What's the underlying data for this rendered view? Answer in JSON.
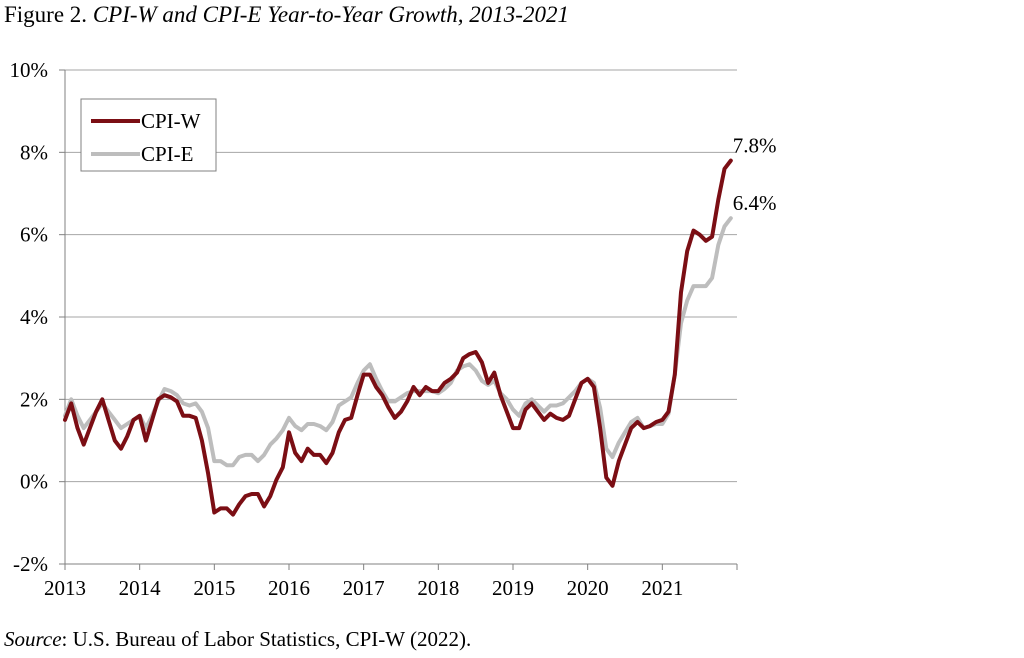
{
  "figure": {
    "label": "Figure 2.",
    "title": "CPI-W and CPI-E Year-to-Year Growth, 2013-2021"
  },
  "source": {
    "label": "Source",
    "text": ": U.S. Bureau of Labor Statistics, CPI-W (2022)."
  },
  "colors": {
    "cpi_w": "#7B0E14",
    "cpi_e": "#BDBDBD",
    "grid": "#A6A6A6",
    "axis": "#808080"
  },
  "chart_data": {
    "type": "line",
    "title": "CPI-W and CPI-E Year-to-Year Growth, 2013-2021",
    "xlabel": "",
    "ylabel": "",
    "ylim": [
      -2,
      10
    ],
    "xlim": [
      2013,
      2022
    ],
    "grid": true,
    "legend_position": "top-left",
    "y_ticks": [
      "-2%",
      "0%",
      "2%",
      "4%",
      "6%",
      "8%",
      "10%"
    ],
    "x_ticks": [
      "2013",
      "2014",
      "2015",
      "2016",
      "2017",
      "2018",
      "2019",
      "2020",
      "2021"
    ],
    "annotations": [
      {
        "series": "CPI-W",
        "text": "7.8%"
      },
      {
        "series": "CPI-E",
        "text": "6.4%"
      }
    ],
    "series": [
      {
        "name": "CPI-W",
        "color": "#7B0E14",
        "x": [
          2013.0,
          2013.083,
          2013.167,
          2013.25,
          2013.333,
          2013.417,
          2013.5,
          2013.583,
          2013.667,
          2013.75,
          2013.833,
          2013.917,
          2014.0,
          2014.083,
          2014.167,
          2014.25,
          2014.333,
          2014.417,
          2014.5,
          2014.583,
          2014.667,
          2014.75,
          2014.833,
          2014.917,
          2015.0,
          2015.083,
          2015.167,
          2015.25,
          2015.333,
          2015.417,
          2015.5,
          2015.583,
          2015.667,
          2015.75,
          2015.833,
          2015.917,
          2016.0,
          2016.083,
          2016.167,
          2016.25,
          2016.333,
          2016.417,
          2016.5,
          2016.583,
          2016.667,
          2016.75,
          2016.833,
          2016.917,
          2017.0,
          2017.083,
          2017.167,
          2017.25,
          2017.333,
          2017.417,
          2017.5,
          2017.583,
          2017.667,
          2017.75,
          2017.833,
          2017.917,
          2018.0,
          2018.083,
          2018.167,
          2018.25,
          2018.333,
          2018.417,
          2018.5,
          2018.583,
          2018.667,
          2018.75,
          2018.833,
          2018.917,
          2019.0,
          2019.083,
          2019.167,
          2019.25,
          2019.333,
          2019.417,
          2019.5,
          2019.583,
          2019.667,
          2019.75,
          2019.833,
          2019.917,
          2020.0,
          2020.083,
          2020.167,
          2020.25,
          2020.333,
          2020.417,
          2020.5,
          2020.583,
          2020.667,
          2020.75,
          2020.833,
          2020.917,
          2021.0,
          2021.083,
          2021.167,
          2021.25,
          2021.333,
          2021.417,
          2021.5,
          2021.583,
          2021.667,
          2021.75,
          2021.833,
          2021.917
        ],
        "values": [
          1.5,
          1.9,
          1.3,
          0.9,
          1.3,
          1.7,
          2.0,
          1.5,
          1.0,
          0.8,
          1.1,
          1.5,
          1.6,
          1.0,
          1.5,
          2.0,
          2.1,
          2.05,
          1.95,
          1.6,
          1.6,
          1.55,
          1.0,
          0.2,
          -0.75,
          -0.65,
          -0.65,
          -0.8,
          -0.55,
          -0.35,
          -0.3,
          -0.3,
          -0.6,
          -0.35,
          0.05,
          0.35,
          1.2,
          0.7,
          0.5,
          0.8,
          0.65,
          0.65,
          0.45,
          0.7,
          1.2,
          1.5,
          1.55,
          2.1,
          2.6,
          2.6,
          2.3,
          2.1,
          1.8,
          1.55,
          1.7,
          1.95,
          2.3,
          2.1,
          2.3,
          2.2,
          2.2,
          2.4,
          2.5,
          2.65,
          3.0,
          3.1,
          3.15,
          2.9,
          2.4,
          2.65,
          2.1,
          1.7,
          1.3,
          1.3,
          1.75,
          1.9,
          1.7,
          1.5,
          1.65,
          1.55,
          1.5,
          1.6,
          2.0,
          2.4,
          2.5,
          2.3,
          1.3,
          0.1,
          -0.1,
          0.5,
          0.9,
          1.3,
          1.45,
          1.3,
          1.35,
          1.45,
          1.5,
          1.7,
          2.6,
          4.6,
          5.6,
          6.1,
          6.0,
          5.85,
          5.95,
          6.85,
          7.6,
          7.8
        ]
      },
      {
        "name": "CPI-E",
        "color": "#BDBDBD",
        "x": [
          2013.0,
          2013.083,
          2013.167,
          2013.25,
          2013.333,
          2013.417,
          2013.5,
          2013.583,
          2013.667,
          2013.75,
          2013.833,
          2013.917,
          2014.0,
          2014.083,
          2014.167,
          2014.25,
          2014.333,
          2014.417,
          2014.5,
          2014.583,
          2014.667,
          2014.75,
          2014.833,
          2014.917,
          2015.0,
          2015.083,
          2015.167,
          2015.25,
          2015.333,
          2015.417,
          2015.5,
          2015.583,
          2015.667,
          2015.75,
          2015.833,
          2015.917,
          2016.0,
          2016.083,
          2016.167,
          2016.25,
          2016.333,
          2016.417,
          2016.5,
          2016.583,
          2016.667,
          2016.75,
          2016.833,
          2016.917,
          2017.0,
          2017.083,
          2017.167,
          2017.25,
          2017.333,
          2017.417,
          2017.5,
          2017.583,
          2017.667,
          2017.75,
          2017.833,
          2017.917,
          2018.0,
          2018.083,
          2018.167,
          2018.25,
          2018.333,
          2018.417,
          2018.5,
          2018.583,
          2018.667,
          2018.75,
          2018.833,
          2018.917,
          2019.0,
          2019.083,
          2019.167,
          2019.25,
          2019.333,
          2019.417,
          2019.5,
          2019.583,
          2019.667,
          2019.75,
          2019.833,
          2019.917,
          2020.0,
          2020.083,
          2020.167,
          2020.25,
          2020.333,
          2020.417,
          2020.5,
          2020.583,
          2020.667,
          2020.75,
          2020.833,
          2020.917,
          2021.0,
          2021.083,
          2021.167,
          2021.25,
          2021.333,
          2021.417,
          2021.5,
          2021.583,
          2021.667,
          2021.75,
          2021.833,
          2021.917
        ],
        "values": [
          1.6,
          2.0,
          1.6,
          1.3,
          1.5,
          1.7,
          1.9,
          1.7,
          1.5,
          1.3,
          1.4,
          1.5,
          1.6,
          1.3,
          1.6,
          1.95,
          2.25,
          2.2,
          2.1,
          1.9,
          1.85,
          1.9,
          1.7,
          1.3,
          0.5,
          0.5,
          0.4,
          0.4,
          0.6,
          0.65,
          0.65,
          0.5,
          0.65,
          0.9,
          1.05,
          1.25,
          1.55,
          1.35,
          1.25,
          1.4,
          1.4,
          1.35,
          1.25,
          1.45,
          1.85,
          1.95,
          2.05,
          2.4,
          2.7,
          2.85,
          2.5,
          2.2,
          1.95,
          1.95,
          2.05,
          2.15,
          2.2,
          2.2,
          2.2,
          2.2,
          2.15,
          2.25,
          2.4,
          2.7,
          2.8,
          2.85,
          2.7,
          2.45,
          2.35,
          2.45,
          2.15,
          2.0,
          1.75,
          1.6,
          1.9,
          2.0,
          1.85,
          1.7,
          1.85,
          1.85,
          1.9,
          2.05,
          2.2,
          2.4,
          2.5,
          2.4,
          1.8,
          0.8,
          0.6,
          0.95,
          1.2,
          1.45,
          1.55,
          1.3,
          1.35,
          1.4,
          1.4,
          1.65,
          2.6,
          3.85,
          4.4,
          4.75,
          4.75,
          4.75,
          4.95,
          5.75,
          6.2,
          6.4
        ]
      }
    ]
  }
}
